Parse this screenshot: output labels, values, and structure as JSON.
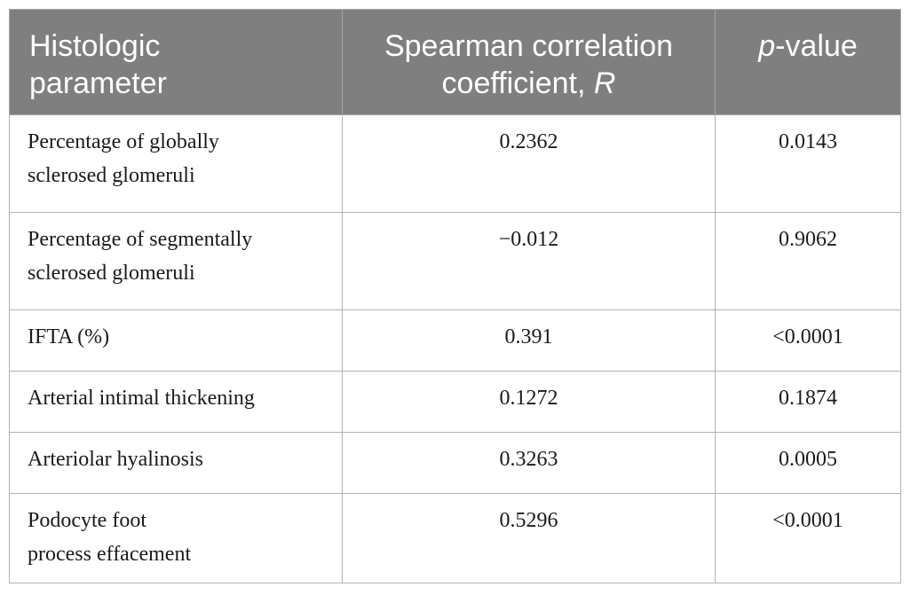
{
  "table": {
    "headers": {
      "param_line1": "Histologic",
      "param_line2": "parameter",
      "coef_line1": "Spearman correlation",
      "coef_line2_text": "coefficient, ",
      "coef_line2_italic": "R",
      "p_italic": "p",
      "p_text": "-value"
    },
    "rows": [
      {
        "param_line1": "Percentage of globally",
        "param_line2": "sclerosed glomeruli",
        "coefficient": "0.2362",
        "p_value": "0.0143"
      },
      {
        "param_line1": "Percentage of segmentally",
        "param_line2": "sclerosed glomeruli",
        "coefficient": "−0.012",
        "p_value": "0.9062"
      },
      {
        "param_line1": "IFTA (%)",
        "param_line2": "",
        "coefficient": "0.391",
        "p_value": "<0.0001"
      },
      {
        "param_line1": "Arterial intimal thickening",
        "param_line2": "",
        "coefficient": "0.1272",
        "p_value": "0.1874"
      },
      {
        "param_line1": "Arteriolar hyalinosis",
        "param_line2": "",
        "coefficient": "0.3263",
        "p_value": "0.0005"
      },
      {
        "param_line1": "Podocyte foot",
        "param_line2": "process effacement",
        "coefficient": "0.5296",
        "p_value": "<0.0001"
      }
    ]
  }
}
